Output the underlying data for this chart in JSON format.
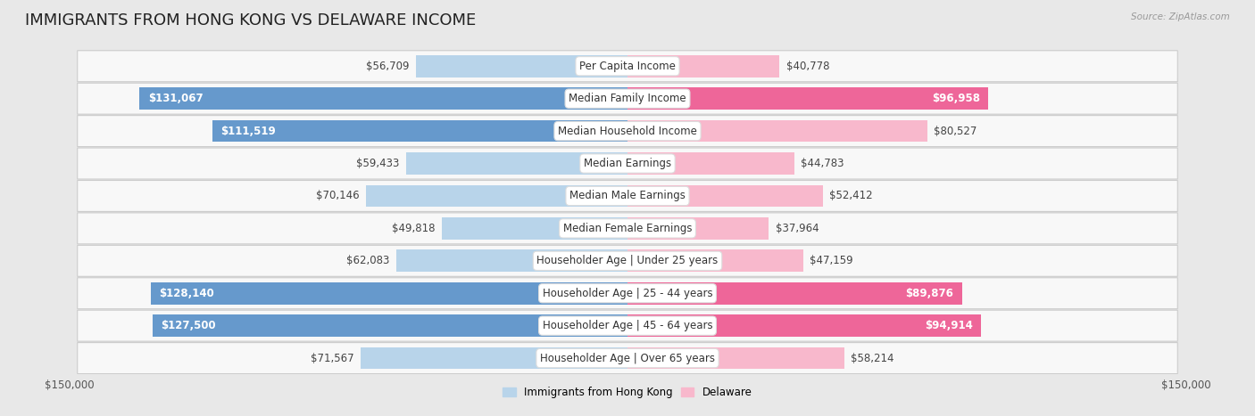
{
  "title": "IMMIGRANTS FROM HONG KONG VS DELAWARE INCOME",
  "source": "Source: ZipAtlas.com",
  "categories": [
    "Per Capita Income",
    "Median Family Income",
    "Median Household Income",
    "Median Earnings",
    "Median Male Earnings",
    "Median Female Earnings",
    "Householder Age | Under 25 years",
    "Householder Age | 25 - 44 years",
    "Householder Age | 45 - 64 years",
    "Householder Age | Over 65 years"
  ],
  "hk_values": [
    56709,
    131067,
    111519,
    59433,
    70146,
    49818,
    62083,
    128140,
    127500,
    71567
  ],
  "de_values": [
    40778,
    96958,
    80527,
    44783,
    52412,
    37964,
    47159,
    89876,
    94914,
    58214
  ],
  "hk_labels": [
    "$56,709",
    "$131,067",
    "$111,519",
    "$59,433",
    "$70,146",
    "$49,818",
    "$62,083",
    "$128,140",
    "$127,500",
    "$71,567"
  ],
  "de_labels": [
    "$40,778",
    "$96,958",
    "$80,527",
    "$44,783",
    "$52,412",
    "$37,964",
    "$47,159",
    "$89,876",
    "$94,914",
    "$58,214"
  ],
  "hk_color_light": "#b8d4ea",
  "hk_color_dark": "#6699cc",
  "de_color_light": "#f8b8cc",
  "de_color_dark": "#ee6699",
  "hk_threshold": 85000,
  "de_threshold": 85000,
  "max_value": 150000,
  "xlabel_left": "$150,000",
  "xlabel_right": "$150,000",
  "legend_hk": "Immigrants from Hong Kong",
  "legend_de": "Delaware",
  "bg_color": "#e8e8e8",
  "row_bg": "#ffffff",
  "title_fontsize": 13,
  "label_fontsize": 8.5,
  "cat_fontsize": 8.5,
  "bar_height": 0.68
}
